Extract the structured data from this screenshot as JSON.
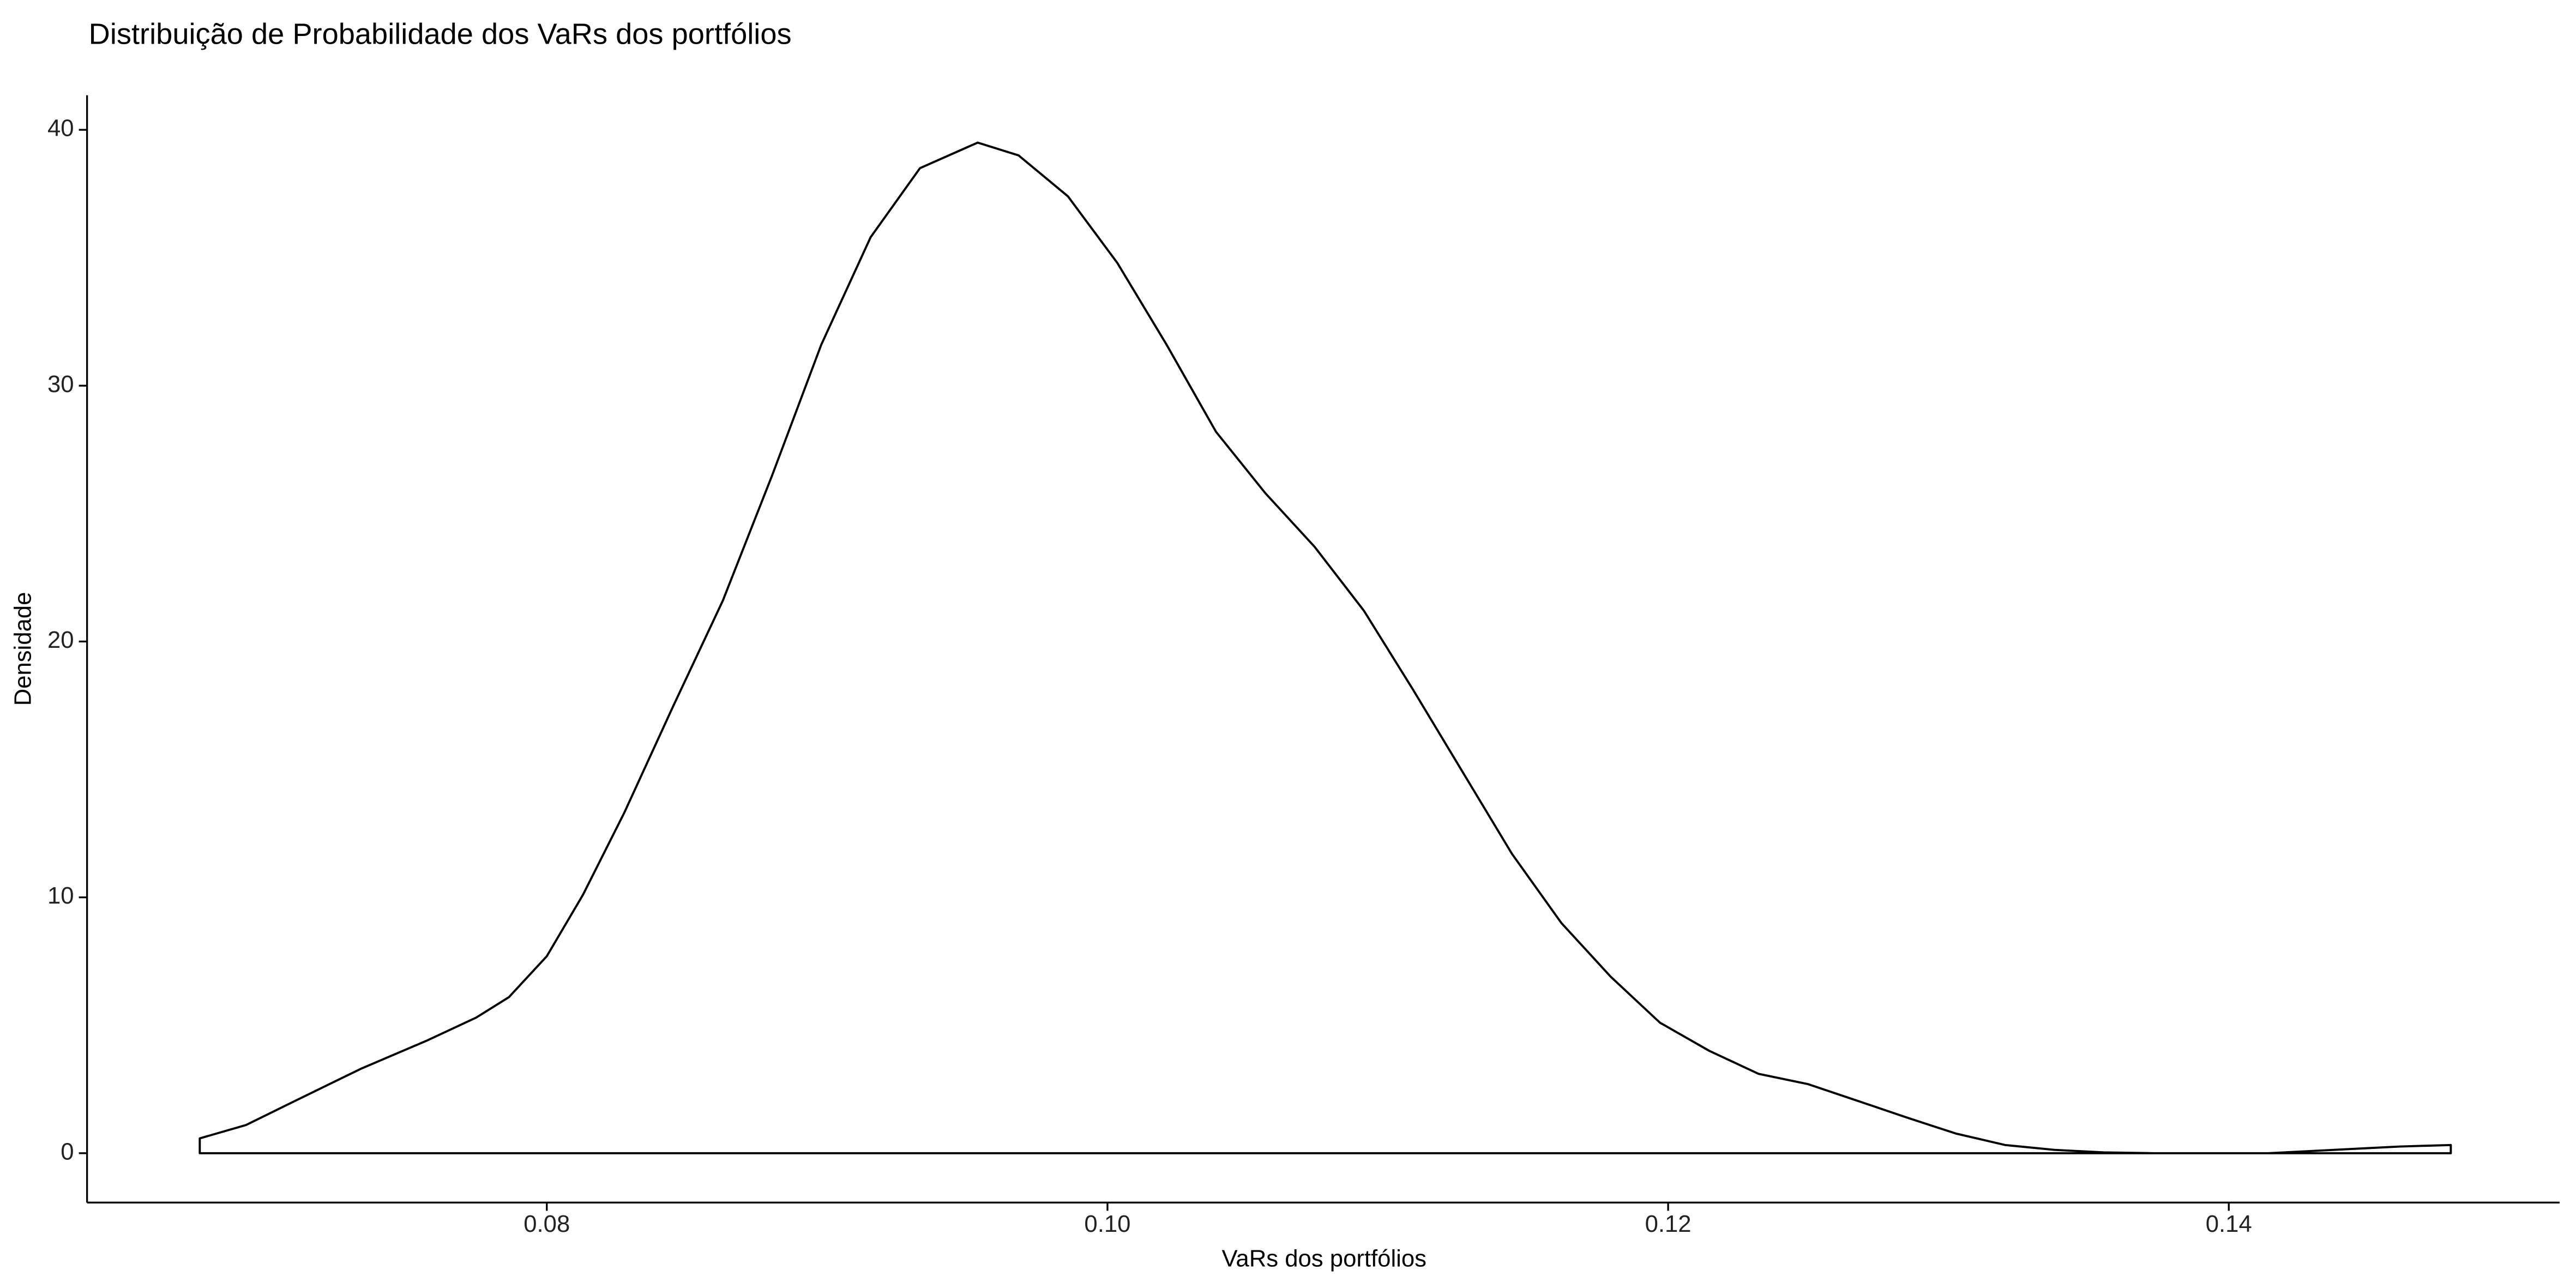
{
  "chart_data": {
    "type": "density",
    "title": "Distribuição de Probabilidade dos VaRs dos portfólios",
    "x_label": "VaRs dos portfólios",
    "y_label": "Densidade",
    "x": [
      0.06762,
      0.06927,
      0.07103,
      0.07337,
      0.07572,
      0.07748,
      0.07865,
      0.08,
      0.08129,
      0.08276,
      0.08452,
      0.08628,
      0.08804,
      0.08979,
      0.09155,
      0.09331,
      0.09537,
      0.09683,
      0.09859,
      0.10035,
      0.10211,
      0.10387,
      0.10563,
      0.10739,
      0.10915,
      0.11091,
      0.11267,
      0.11443,
      0.11619,
      0.11795,
      0.11971,
      0.12147,
      0.12323,
      0.12499,
      0.12675,
      0.1285,
      0.13026,
      0.13202,
      0.13378,
      0.13554,
      0.1373,
      0.14141,
      0.14375,
      0.1461,
      0.14792
    ],
    "values": [
      0.58,
      1.1,
      2.05,
      3.3,
      4.4,
      5.3,
      6.1,
      7.7,
      10.1,
      13.3,
      17.5,
      21.6,
      26.5,
      31.6,
      35.8,
      38.5,
      39.5,
      39.0,
      37.4,
      34.8,
      31.6,
      28.2,
      25.8,
      23.7,
      21.2,
      18.1,
      14.9,
      11.7,
      9.0,
      6.9,
      5.1,
      4.0,
      3.1,
      2.7,
      2.05,
      1.4,
      0.77,
      0.32,
      0.13,
      0.03,
      0,
      0,
      0.13,
      0.26,
      0.32
    ],
    "color": "#000000",
    "xlim": [
      0.0636,
      0.1518
    ],
    "ylim": [
      -1.93,
      41.35
    ],
    "xticks": [
      0.08,
      {
        "value": 0.1,
        "label": "0.10"
      },
      0.12,
      0.14
    ],
    "yticks": [
      0,
      10,
      20,
      30,
      40
    ],
    "grid": false
  }
}
